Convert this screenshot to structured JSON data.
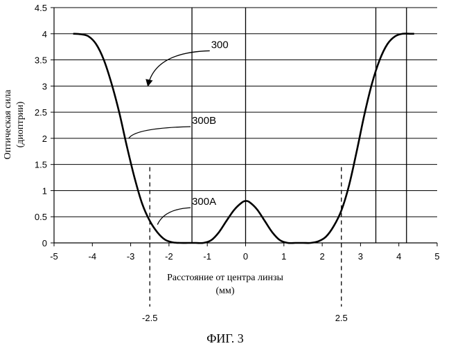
{
  "figure_caption": "ФИГ. 3",
  "chart_data": {
    "type": "line",
    "xlabel_line1": "Расстояние от центра линзы",
    "xlabel_line2": "(мм)",
    "ylabel_line1": "Оптическая сила",
    "ylabel_line2": "(диоптрии)",
    "xlim": [
      -5,
      5
    ],
    "ylim": [
      0,
      4.5
    ],
    "x_ticks": [
      -5,
      -4,
      -3,
      -2,
      -1,
      0,
      1,
      2,
      3,
      4,
      5
    ],
    "y_ticks": [
      0,
      0.5,
      1,
      1.5,
      2,
      2.5,
      3,
      3.5,
      4,
      4.5
    ],
    "x_tick_labels": [
      "-5",
      "-4",
      "-3",
      "-2",
      "-1",
      "0",
      "1",
      "2",
      "3",
      "4",
      "5"
    ],
    "y_tick_labels": [
      "0",
      "0.5",
      "1",
      "1.5",
      "2",
      "2.5",
      "3",
      "3.5",
      "4",
      "4.5"
    ],
    "grid": "horizontal",
    "vertical_solid_lines": [
      -1.4,
      0,
      3.4,
      4.2
    ],
    "vertical_dashed_lines": [
      {
        "x": -2.5,
        "label": "-2.5"
      },
      {
        "x": 2.5,
        "label": "2.5"
      }
    ],
    "series": [
      {
        "x": [
          -4.5,
          -4.3,
          -4.1,
          -3.9,
          -3.7,
          -3.5,
          -3.3,
          -3.1,
          -2.9,
          -2.7,
          -2.5,
          -2.3,
          -2.1,
          -1.9,
          -1.7,
          -1.5,
          -1.3,
          -1.1,
          -0.9,
          -0.7,
          -0.5,
          -0.3,
          -0.1,
          0.0,
          0.1,
          0.3,
          0.5,
          0.7,
          0.9,
          1.1,
          1.3,
          1.5,
          1.7,
          1.9,
          2.1,
          2.3,
          2.5,
          2.7,
          2.9,
          3.1,
          3.3,
          3.5,
          3.7,
          3.9,
          4.1,
          4.3,
          4.4
        ],
        "y": [
          4.0,
          3.99,
          3.95,
          3.8,
          3.5,
          3.05,
          2.5,
          1.85,
          1.25,
          0.75,
          0.42,
          0.2,
          0.06,
          0.01,
          0.0,
          0.0,
          0.0,
          0.0,
          0.05,
          0.2,
          0.42,
          0.63,
          0.77,
          0.8,
          0.78,
          0.64,
          0.42,
          0.2,
          0.05,
          0.0,
          0.0,
          0.0,
          0.0,
          0.03,
          0.12,
          0.32,
          0.62,
          1.1,
          1.75,
          2.45,
          3.05,
          3.5,
          3.8,
          3.95,
          4.0,
          4.0,
          4.0
        ]
      }
    ],
    "annotations": [
      {
        "text": "300",
        "x": -0.9,
        "y": 3.7,
        "target_x": -2.55,
        "target_y": 3.0,
        "arrow": true
      },
      {
        "text": "300B",
        "x": -1.4,
        "y": 2.25,
        "target_x": -3.05,
        "target_y": 2.0,
        "arrow": false
      },
      {
        "text": "300A",
        "x": -1.4,
        "y": 0.7,
        "target_x": -2.3,
        "target_y": 0.35,
        "arrow": false
      }
    ]
  }
}
